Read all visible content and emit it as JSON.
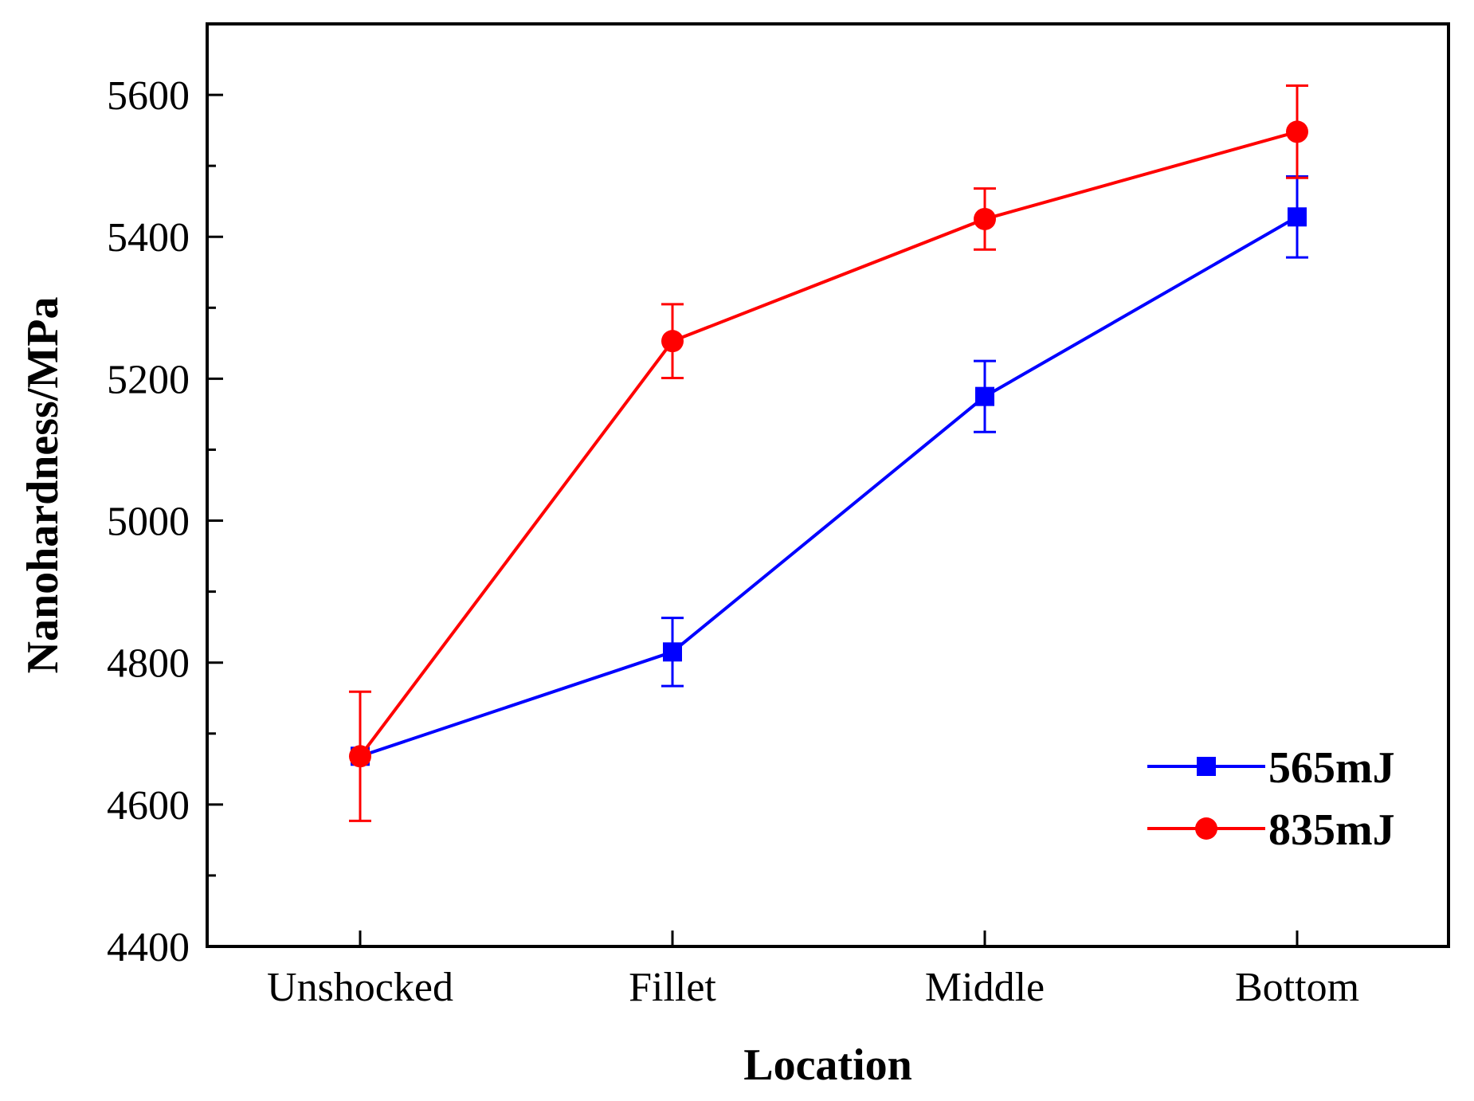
{
  "chart_data": {
    "type": "line",
    "title": "",
    "xlabel": "Location",
    "ylabel": "Nanohardness/MPa",
    "categories": [
      "Unshocked",
      "Fillet",
      "Middle",
      "Bottom"
    ],
    "ylim": [
      4400,
      5700
    ],
    "yticks": [
      4400,
      4600,
      4800,
      5000,
      5200,
      5400,
      5600
    ],
    "grid": false,
    "legend_position": "bottom-right",
    "series": [
      {
        "name": "565mJ",
        "color": "#0000ff",
        "marker": "square",
        "values": [
          4668,
          4815,
          5175,
          5428
        ],
        "errors": [
          0,
          48,
          50,
          57
        ]
      },
      {
        "name": "835mJ",
        "color": "#ff0000",
        "marker": "circle",
        "values": [
          4668,
          5253,
          5425,
          5548
        ],
        "errors": [
          91,
          52,
          43,
          65
        ]
      }
    ]
  }
}
